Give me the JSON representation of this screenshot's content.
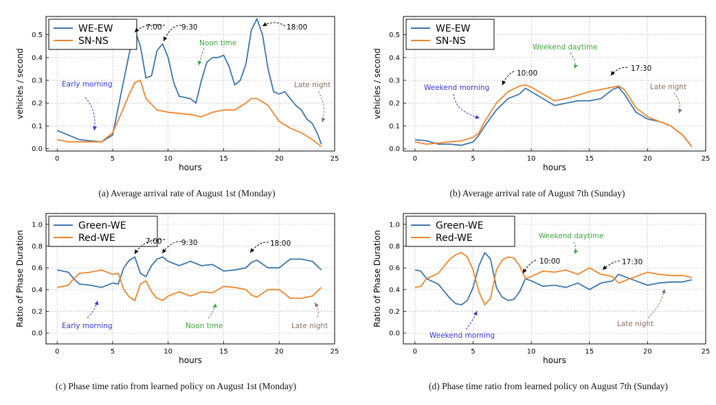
{
  "colors": {
    "blue": "#3b73ad",
    "orange": "#f0842a",
    "anno_blue": "#3535d8",
    "anno_green": "#3ea53e",
    "anno_brown": "#8b7062",
    "anno_black": "#000000"
  },
  "chart_data": [
    {
      "type": "line",
      "caption": "(a) Average arrival rate of August 1st (Monday)",
      "xlabel": "hours",
      "ylabel": "vehicles / second",
      "xlim": [
        -1,
        25
      ],
      "ylim": [
        -0.01,
        0.58
      ],
      "xticks": [
        "0",
        "5",
        "10",
        "15",
        "20",
        "25"
      ],
      "yticks": [
        "0.0",
        "0.1",
        "0.2",
        "0.3",
        "0.4",
        "0.5"
      ],
      "grid": true,
      "legend": "top-left",
      "series": [
        {
          "name": "WE-EW",
          "color": "#3b73ad",
          "x": [
            0,
            1,
            2,
            3,
            4,
            5,
            6,
            6.5,
            7,
            7.5,
            8,
            8.5,
            9,
            9.5,
            10,
            10.5,
            11,
            12,
            12.5,
            13,
            13.5,
            14,
            14.5,
            15,
            15.5,
            16,
            16.5,
            17,
            17.5,
            18,
            18.5,
            19,
            19.5,
            20,
            20.5,
            21,
            21.5,
            22,
            22.5,
            23,
            23.5,
            23.8
          ],
          "values": [
            0.08,
            0.06,
            0.04,
            0.035,
            0.03,
            0.06,
            0.3,
            0.42,
            0.52,
            0.45,
            0.31,
            0.32,
            0.43,
            0.46,
            0.4,
            0.29,
            0.23,
            0.22,
            0.2,
            0.3,
            0.38,
            0.4,
            0.4,
            0.41,
            0.36,
            0.28,
            0.3,
            0.37,
            0.52,
            0.57,
            0.5,
            0.35,
            0.25,
            0.24,
            0.25,
            0.22,
            0.19,
            0.17,
            0.13,
            0.11,
            0.06,
            0.02
          ]
        },
        {
          "name": "SN-NS",
          "color": "#f0842a",
          "x": [
            0,
            1,
            2,
            3,
            4,
            5,
            6,
            6.5,
            7,
            7.5,
            8,
            9,
            10,
            11,
            12,
            13,
            14,
            15,
            16,
            17,
            17.5,
            18,
            19,
            20,
            21,
            22,
            23,
            23.8
          ],
          "values": [
            0.04,
            0.03,
            0.03,
            0.03,
            0.03,
            0.07,
            0.18,
            0.24,
            0.29,
            0.3,
            0.22,
            0.17,
            0.16,
            0.155,
            0.15,
            0.14,
            0.16,
            0.17,
            0.17,
            0.2,
            0.22,
            0.22,
            0.19,
            0.12,
            0.09,
            0.07,
            0.04,
            0.01
          ]
        }
      ],
      "annotations": [
        {
          "text": "7:00",
          "color": "#000000"
        },
        {
          "text": "9:30",
          "color": "#000000"
        },
        {
          "text": "18:00",
          "color": "#000000"
        },
        {
          "text": "Noon time",
          "color": "#3ea53e"
        },
        {
          "text": "Early morning",
          "color": "#3535d8"
        },
        {
          "text": "Late night",
          "color": "#8b7062"
        }
      ]
    },
    {
      "type": "line",
      "caption": "(b) Average arrival rate of August 7th (Sunday)",
      "xlabel": "hours",
      "ylabel": "vehicles / second",
      "xlim": [
        -1,
        25
      ],
      "ylim": [
        -0.01,
        0.58
      ],
      "xticks": [
        "0",
        "5",
        "10",
        "15",
        "20",
        "25"
      ],
      "yticks": [
        "0.0",
        "0.1",
        "0.2",
        "0.3",
        "0.4",
        "0.5"
      ],
      "grid": true,
      "legend": "top-left",
      "series": [
        {
          "name": "WE-EW",
          "color": "#3b73ad",
          "x": [
            0,
            1,
            2,
            3,
            4,
            5,
            5.5,
            6,
            7,
            8,
            9,
            9.5,
            10,
            11,
            12,
            13,
            14,
            15,
            16,
            17,
            17.5,
            18,
            19,
            20,
            21,
            22,
            23,
            23.8
          ],
          "values": [
            0.04,
            0.035,
            0.02,
            0.02,
            0.015,
            0.03,
            0.06,
            0.1,
            0.17,
            0.22,
            0.24,
            0.265,
            0.25,
            0.22,
            0.19,
            0.2,
            0.21,
            0.21,
            0.22,
            0.26,
            0.27,
            0.24,
            0.16,
            0.13,
            0.12,
            0.1,
            0.06,
            0.01
          ]
        },
        {
          "name": "SN-NS",
          "color": "#f0842a",
          "x": [
            0,
            1,
            2,
            3,
            4,
            5,
            5.5,
            6,
            7,
            8,
            9,
            9.5,
            10,
            11,
            12,
            13,
            14,
            15,
            16,
            17,
            17.5,
            18,
            19,
            20,
            21,
            22,
            23,
            23.8
          ],
          "values": [
            0.03,
            0.02,
            0.025,
            0.03,
            0.035,
            0.05,
            0.07,
            0.12,
            0.2,
            0.25,
            0.275,
            0.28,
            0.27,
            0.24,
            0.21,
            0.22,
            0.235,
            0.25,
            0.26,
            0.27,
            0.275,
            0.26,
            0.18,
            0.14,
            0.12,
            0.1,
            0.06,
            0.01
          ]
        }
      ],
      "annotations": [
        {
          "text": "Weekend daytime",
          "color": "#3ea53e"
        },
        {
          "text": "10:00",
          "color": "#000000"
        },
        {
          "text": "17:30",
          "color": "#000000"
        },
        {
          "text": "Weekend morning",
          "color": "#3535d8"
        },
        {
          "text": "Late night",
          "color": "#8b7062"
        }
      ]
    },
    {
      "type": "line",
      "caption": "(c) Phase time ratio from learned policy on August 1st (Monday)",
      "xlabel": "hours",
      "ylabel": "Ratio of Phase Duration",
      "xlim": [
        -1,
        25
      ],
      "ylim": [
        -0.1,
        1.1
      ],
      "xticks": [
        "0",
        "5",
        "10",
        "15",
        "20",
        "25"
      ],
      "yticks": [
        "0.0",
        "0.2",
        "0.4",
        "0.6",
        "0.8",
        "1.0"
      ],
      "grid": true,
      "legend": "top-left",
      "series": [
        {
          "name": "Green-WE",
          "color": "#3b73ad",
          "x": [
            0,
            1,
            1.5,
            2,
            3,
            4,
            5,
            5.5,
            6,
            6.5,
            7,
            7.5,
            8,
            8.5,
            9,
            9.5,
            10,
            11,
            12,
            13,
            14,
            15,
            16,
            17,
            17.5,
            18,
            19,
            20,
            21,
            22,
            23,
            23.8
          ],
          "values": [
            0.58,
            0.56,
            0.5,
            0.45,
            0.44,
            0.42,
            0.46,
            0.45,
            0.6,
            0.67,
            0.7,
            0.55,
            0.52,
            0.62,
            0.68,
            0.7,
            0.66,
            0.62,
            0.66,
            0.62,
            0.63,
            0.57,
            0.58,
            0.6,
            0.65,
            0.67,
            0.6,
            0.6,
            0.68,
            0.68,
            0.66,
            0.58
          ]
        },
        {
          "name": "Red-WE",
          "color": "#f0842a",
          "x": [
            0,
            1,
            1.5,
            2,
            3,
            4,
            5,
            5.5,
            6,
            6.5,
            7,
            7.5,
            8,
            8.5,
            9,
            9.5,
            10,
            11,
            12,
            13,
            14,
            15,
            16,
            17,
            17.5,
            18,
            19,
            20,
            21,
            22,
            23,
            23.8
          ],
          "values": [
            0.42,
            0.44,
            0.5,
            0.55,
            0.56,
            0.58,
            0.54,
            0.55,
            0.4,
            0.33,
            0.3,
            0.45,
            0.48,
            0.38,
            0.32,
            0.3,
            0.34,
            0.38,
            0.34,
            0.38,
            0.37,
            0.43,
            0.42,
            0.4,
            0.35,
            0.33,
            0.4,
            0.4,
            0.32,
            0.32,
            0.34,
            0.42
          ]
        }
      ],
      "annotations": [
        {
          "text": "7:00",
          "color": "#000000"
        },
        {
          "text": "9:30",
          "color": "#000000"
        },
        {
          "text": "18:00",
          "color": "#000000"
        },
        {
          "text": "Early morning",
          "color": "#3535d8"
        },
        {
          "text": "Noon time",
          "color": "#3ea53e"
        },
        {
          "text": "Late night",
          "color": "#8b7062"
        }
      ]
    },
    {
      "type": "line",
      "caption": "(d) Phase time ratio from learned policy on August 7th (Sunday)",
      "xlabel": "hours",
      "ylabel": "Ratio of Phase Duration",
      "xlim": [
        -1,
        25
      ],
      "ylim": [
        -0.1,
        1.1
      ],
      "xticks": [
        "0",
        "5",
        "10",
        "15",
        "20",
        "25"
      ],
      "yticks": [
        "0.0",
        "0.2",
        "0.4",
        "0.6",
        "0.8",
        "1.0"
      ],
      "grid": true,
      "legend": "top-left",
      "series": [
        {
          "name": "Green-WE",
          "color": "#3b73ad",
          "x": [
            0,
            0.5,
            1,
            2,
            3,
            3.5,
            4,
            4.5,
            5,
            5.5,
            6,
            6.5,
            7,
            7.5,
            8,
            8.5,
            9,
            9.5,
            10,
            11,
            12,
            13,
            14,
            15,
            16,
            17,
            17.5,
            18,
            19,
            20,
            21,
            22,
            23,
            23.8
          ],
          "values": [
            0.58,
            0.57,
            0.5,
            0.45,
            0.32,
            0.27,
            0.26,
            0.3,
            0.42,
            0.62,
            0.74,
            0.68,
            0.42,
            0.33,
            0.3,
            0.31,
            0.38,
            0.5,
            0.48,
            0.43,
            0.44,
            0.42,
            0.46,
            0.4,
            0.46,
            0.48,
            0.54,
            0.52,
            0.48,
            0.44,
            0.46,
            0.47,
            0.47,
            0.49
          ]
        },
        {
          "name": "Red-WE",
          "color": "#f0842a",
          "x": [
            0,
            0.5,
            1,
            2,
            3,
            3.5,
            4,
            4.5,
            5,
            5.5,
            6,
            6.5,
            7,
            7.5,
            8,
            8.5,
            9,
            9.5,
            10,
            11,
            12,
            13,
            14,
            15,
            16,
            17,
            17.5,
            18,
            19,
            20,
            21,
            22,
            23,
            23.8
          ],
          "values": [
            0.42,
            0.43,
            0.5,
            0.55,
            0.68,
            0.72,
            0.74,
            0.7,
            0.58,
            0.38,
            0.26,
            0.32,
            0.58,
            0.67,
            0.7,
            0.69,
            0.62,
            0.5,
            0.52,
            0.57,
            0.56,
            0.58,
            0.54,
            0.6,
            0.54,
            0.52,
            0.46,
            0.48,
            0.52,
            0.56,
            0.54,
            0.53,
            0.53,
            0.51
          ]
        }
      ],
      "annotations": [
        {
          "text": "Weekend daytime",
          "color": "#3ea53e"
        },
        {
          "text": "10:00",
          "color": "#000000"
        },
        {
          "text": "17:30",
          "color": "#000000"
        },
        {
          "text": "Weekend morning",
          "color": "#3535d8"
        },
        {
          "text": "Late night",
          "color": "#8b7062"
        }
      ]
    }
  ]
}
